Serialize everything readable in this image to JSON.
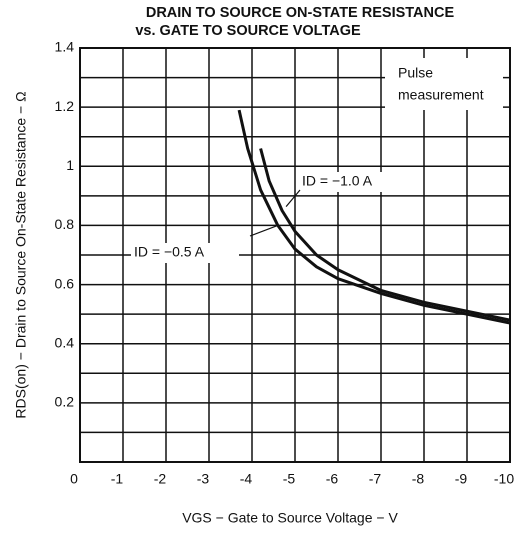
{
  "chart_data": {
    "type": "line",
    "title": [
      "DRAIN TO SOURCE ON-STATE RESISTANCE",
      "vs. GATE TO SOURCE VOLTAGE"
    ],
    "xlabel": "VGS − Gate to Source Voltage − V",
    "ylabel": "RDS(on) − Drain to Source On-State Resistance − Ω",
    "annotation": [
      "Pulse",
      "measurement"
    ],
    "xlim": [
      0,
      -10
    ],
    "xticks": [
      0,
      -1,
      -2,
      -3,
      -4,
      -5,
      -6,
      -7,
      -8,
      -9,
      -10
    ],
    "ylim": [
      0,
      1.4
    ],
    "yticks": [
      0.2,
      0.4,
      0.6,
      0.8,
      1.0,
      1.2,
      1.4
    ],
    "y_minor_ticks": [
      0.1,
      0.3,
      0.5,
      0.7,
      0.9,
      1.1,
      1.3
    ],
    "grid": true,
    "series": [
      {
        "name": "ID = −0.5 A",
        "color": "#111111",
        "x": [
          -3.7,
          -3.9,
          -4.2,
          -4.6,
          -5,
          -5.5,
          -6,
          -7,
          -8,
          -9,
          -10
        ],
        "values": [
          1.19,
          1.06,
          0.92,
          0.8,
          0.72,
          0.66,
          0.62,
          0.57,
          0.53,
          0.5,
          0.47
        ]
      },
      {
        "name": "ID = −1.0 A",
        "color": "#111111",
        "x": [
          -4.2,
          -4.4,
          -4.7,
          -5,
          -5.5,
          -6,
          -7,
          -8,
          -9,
          -10
        ],
        "values": [
          1.06,
          0.95,
          0.85,
          0.78,
          0.7,
          0.65,
          0.58,
          0.54,
          0.51,
          0.48
        ]
      }
    ]
  }
}
